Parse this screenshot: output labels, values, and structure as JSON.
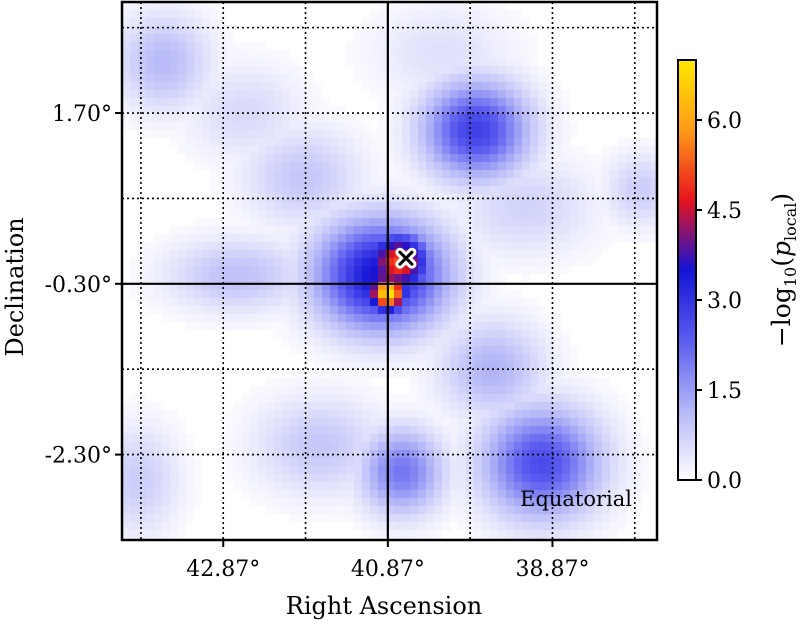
{
  "chart_data": {
    "type": "heatmap",
    "title": "",
    "xlabel": "Right Ascension",
    "ylabel": "Declination",
    "x_ticks": [
      {
        "value": 42.87,
        "label": "42.87°"
      },
      {
        "value": 40.87,
        "label": "40.87°"
      },
      {
        "value": 38.87,
        "label": "38.87°"
      }
    ],
    "y_ticks": [
      {
        "value": 1.7,
        "label": "1.70°"
      },
      {
        "value": -0.3,
        "label": "-0.30°"
      },
      {
        "value": -2.3,
        "label": "-2.30°"
      }
    ],
    "x_range": [
      44.1,
      37.6
    ],
    "y_range": [
      3.0,
      -3.3
    ],
    "x_grid": [
      43.87,
      42.87,
      41.87,
      39.87,
      38.87,
      37.87
    ],
    "y_grid": [
      2.7,
      1.7,
      0.7,
      -1.3,
      -2.3,
      -3.3
    ],
    "crosshair": {
      "ra": 40.87,
      "dec": -0.3
    },
    "grid": true,
    "coordinate_system_label": "Equatorial",
    "colorbar": {
      "label_main": "−log",
      "label_sub": "10",
      "label_var": "p",
      "label_var_sub": "local",
      "range": [
        0,
        7
      ],
      "ticks": [
        {
          "value": 0.0,
          "label": "0.0"
        },
        {
          "value": 1.5,
          "label": "1.5"
        },
        {
          "value": 3.0,
          "label": "3.0"
        },
        {
          "value": 4.5,
          "label": "4.5"
        },
        {
          "value": 6.0,
          "label": "6.0"
        }
      ],
      "colors": [
        "#ffffff",
        "#b4b6f7",
        "#5a5cf0",
        "#1414d6",
        "#e8141e",
        "#ff9a18",
        "#ffe800"
      ]
    },
    "marker": {
      "ra": 40.65,
      "dec": 0.0,
      "symbol": "x"
    },
    "hotspots": [
      {
        "ra": 40.87,
        "dec": -0.4,
        "value": 7.0,
        "sigma_ra": 0.17,
        "sigma_dec": 0.17
      },
      {
        "ra": 40.75,
        "dec": -0.05,
        "value": 5.2,
        "sigma_ra": 0.28,
        "sigma_dec": 0.25
      },
      {
        "ra": 40.95,
        "dec": -0.2,
        "value": 3.6,
        "sigma_ra": 0.55,
        "sigma_dec": 0.45
      },
      {
        "ra": 39.8,
        "dec": 1.5,
        "value": 2.8,
        "sigma_ra": 0.45,
        "sigma_dec": 0.4
      },
      {
        "ra": 39.0,
        "dec": -2.4,
        "value": 2.6,
        "sigma_ra": 0.5,
        "sigma_dec": 0.45
      },
      {
        "ra": 40.7,
        "dec": -2.5,
        "value": 2.0,
        "sigma_ra": 0.35,
        "sigma_dec": 0.35
      },
      {
        "ra": 43.6,
        "dec": 2.3,
        "value": 1.1,
        "sigma_ra": 0.4,
        "sigma_dec": 0.4
      },
      {
        "ra": 41.9,
        "dec": 0.95,
        "value": 0.9,
        "sigma_ra": 0.5,
        "sigma_dec": 0.4
      },
      {
        "ra": 42.7,
        "dec": -0.2,
        "value": 1.0,
        "sigma_ra": 0.6,
        "sigma_dec": 0.3
      },
      {
        "ra": 39.6,
        "dec": -1.3,
        "value": 1.2,
        "sigma_ra": 0.45,
        "sigma_dec": 0.4
      },
      {
        "ra": 41.7,
        "dec": -2.2,
        "value": 0.9,
        "sigma_ra": 0.55,
        "sigma_dec": 0.4
      },
      {
        "ra": 43.9,
        "dec": -2.6,
        "value": 0.8,
        "sigma_ra": 0.35,
        "sigma_dec": 0.45
      },
      {
        "ra": 37.8,
        "dec": 0.8,
        "value": 0.8,
        "sigma_ra": 0.3,
        "sigma_dec": 0.3
      },
      {
        "ra": 39.2,
        "dec": 0.6,
        "value": 0.7,
        "sigma_ra": 0.6,
        "sigma_dec": 0.4
      },
      {
        "ra": 42.6,
        "dec": 1.7,
        "value": 0.6,
        "sigma_ra": 0.5,
        "sigma_dec": 0.4
      },
      {
        "ra": 40.2,
        "dec": 2.4,
        "value": 0.5,
        "sigma_ra": 0.6,
        "sigma_dec": 0.4
      }
    ]
  }
}
